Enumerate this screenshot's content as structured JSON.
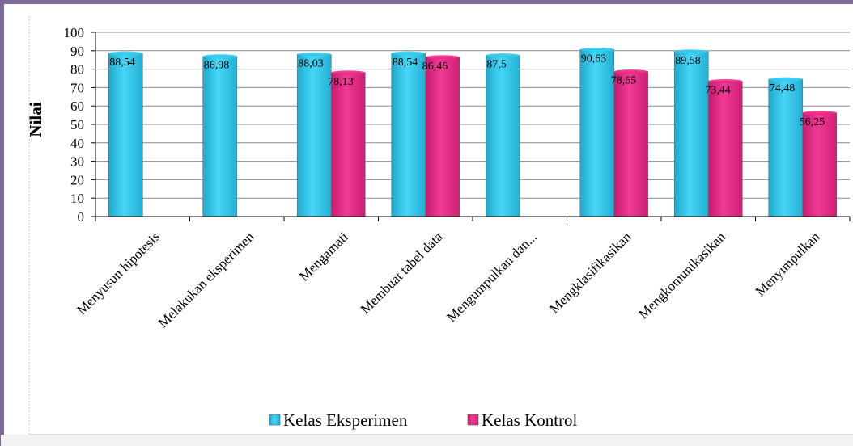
{
  "colors": {
    "eksperimen": "#33ccf0",
    "kontrol": "#ee2a8a",
    "frame": "#7d6a9a"
  },
  "chart_data": {
    "type": "bar",
    "ylabel": "Nilai",
    "xlabel": "",
    "ylim": [
      0,
      100
    ],
    "yticks": [
      0,
      10,
      20,
      30,
      40,
      50,
      60,
      70,
      80,
      90,
      100
    ],
    "grid": true,
    "legend_position": "bottom",
    "categories": [
      "Menyusun hipotesis",
      "Melakukan eksperimen",
      "Mengamati",
      "Membuat tabel data",
      "Mengumpulkan dan...",
      "Mengklasifikasikan",
      "Mengkomunikasikan",
      "Menyimpulkan"
    ],
    "series": [
      {
        "name": "Kelas Eksperimen",
        "values": [
          88.54,
          86.98,
          88.03,
          88.54,
          87.5,
          90.63,
          89.58,
          74.48
        ],
        "labels": [
          "88,54",
          "86,98",
          "88,03",
          "88,54",
          "87,5",
          "90,63",
          "89,58",
          "74,48"
        ]
      },
      {
        "name": "Kelas Kontrol",
        "values": [
          null,
          null,
          78.13,
          86.46,
          null,
          78.65,
          73.44,
          56.25
        ],
        "labels": [
          "",
          "",
          "78,13",
          "86,46",
          "",
          "78,65",
          "73,44",
          "56,25"
        ]
      }
    ]
  }
}
